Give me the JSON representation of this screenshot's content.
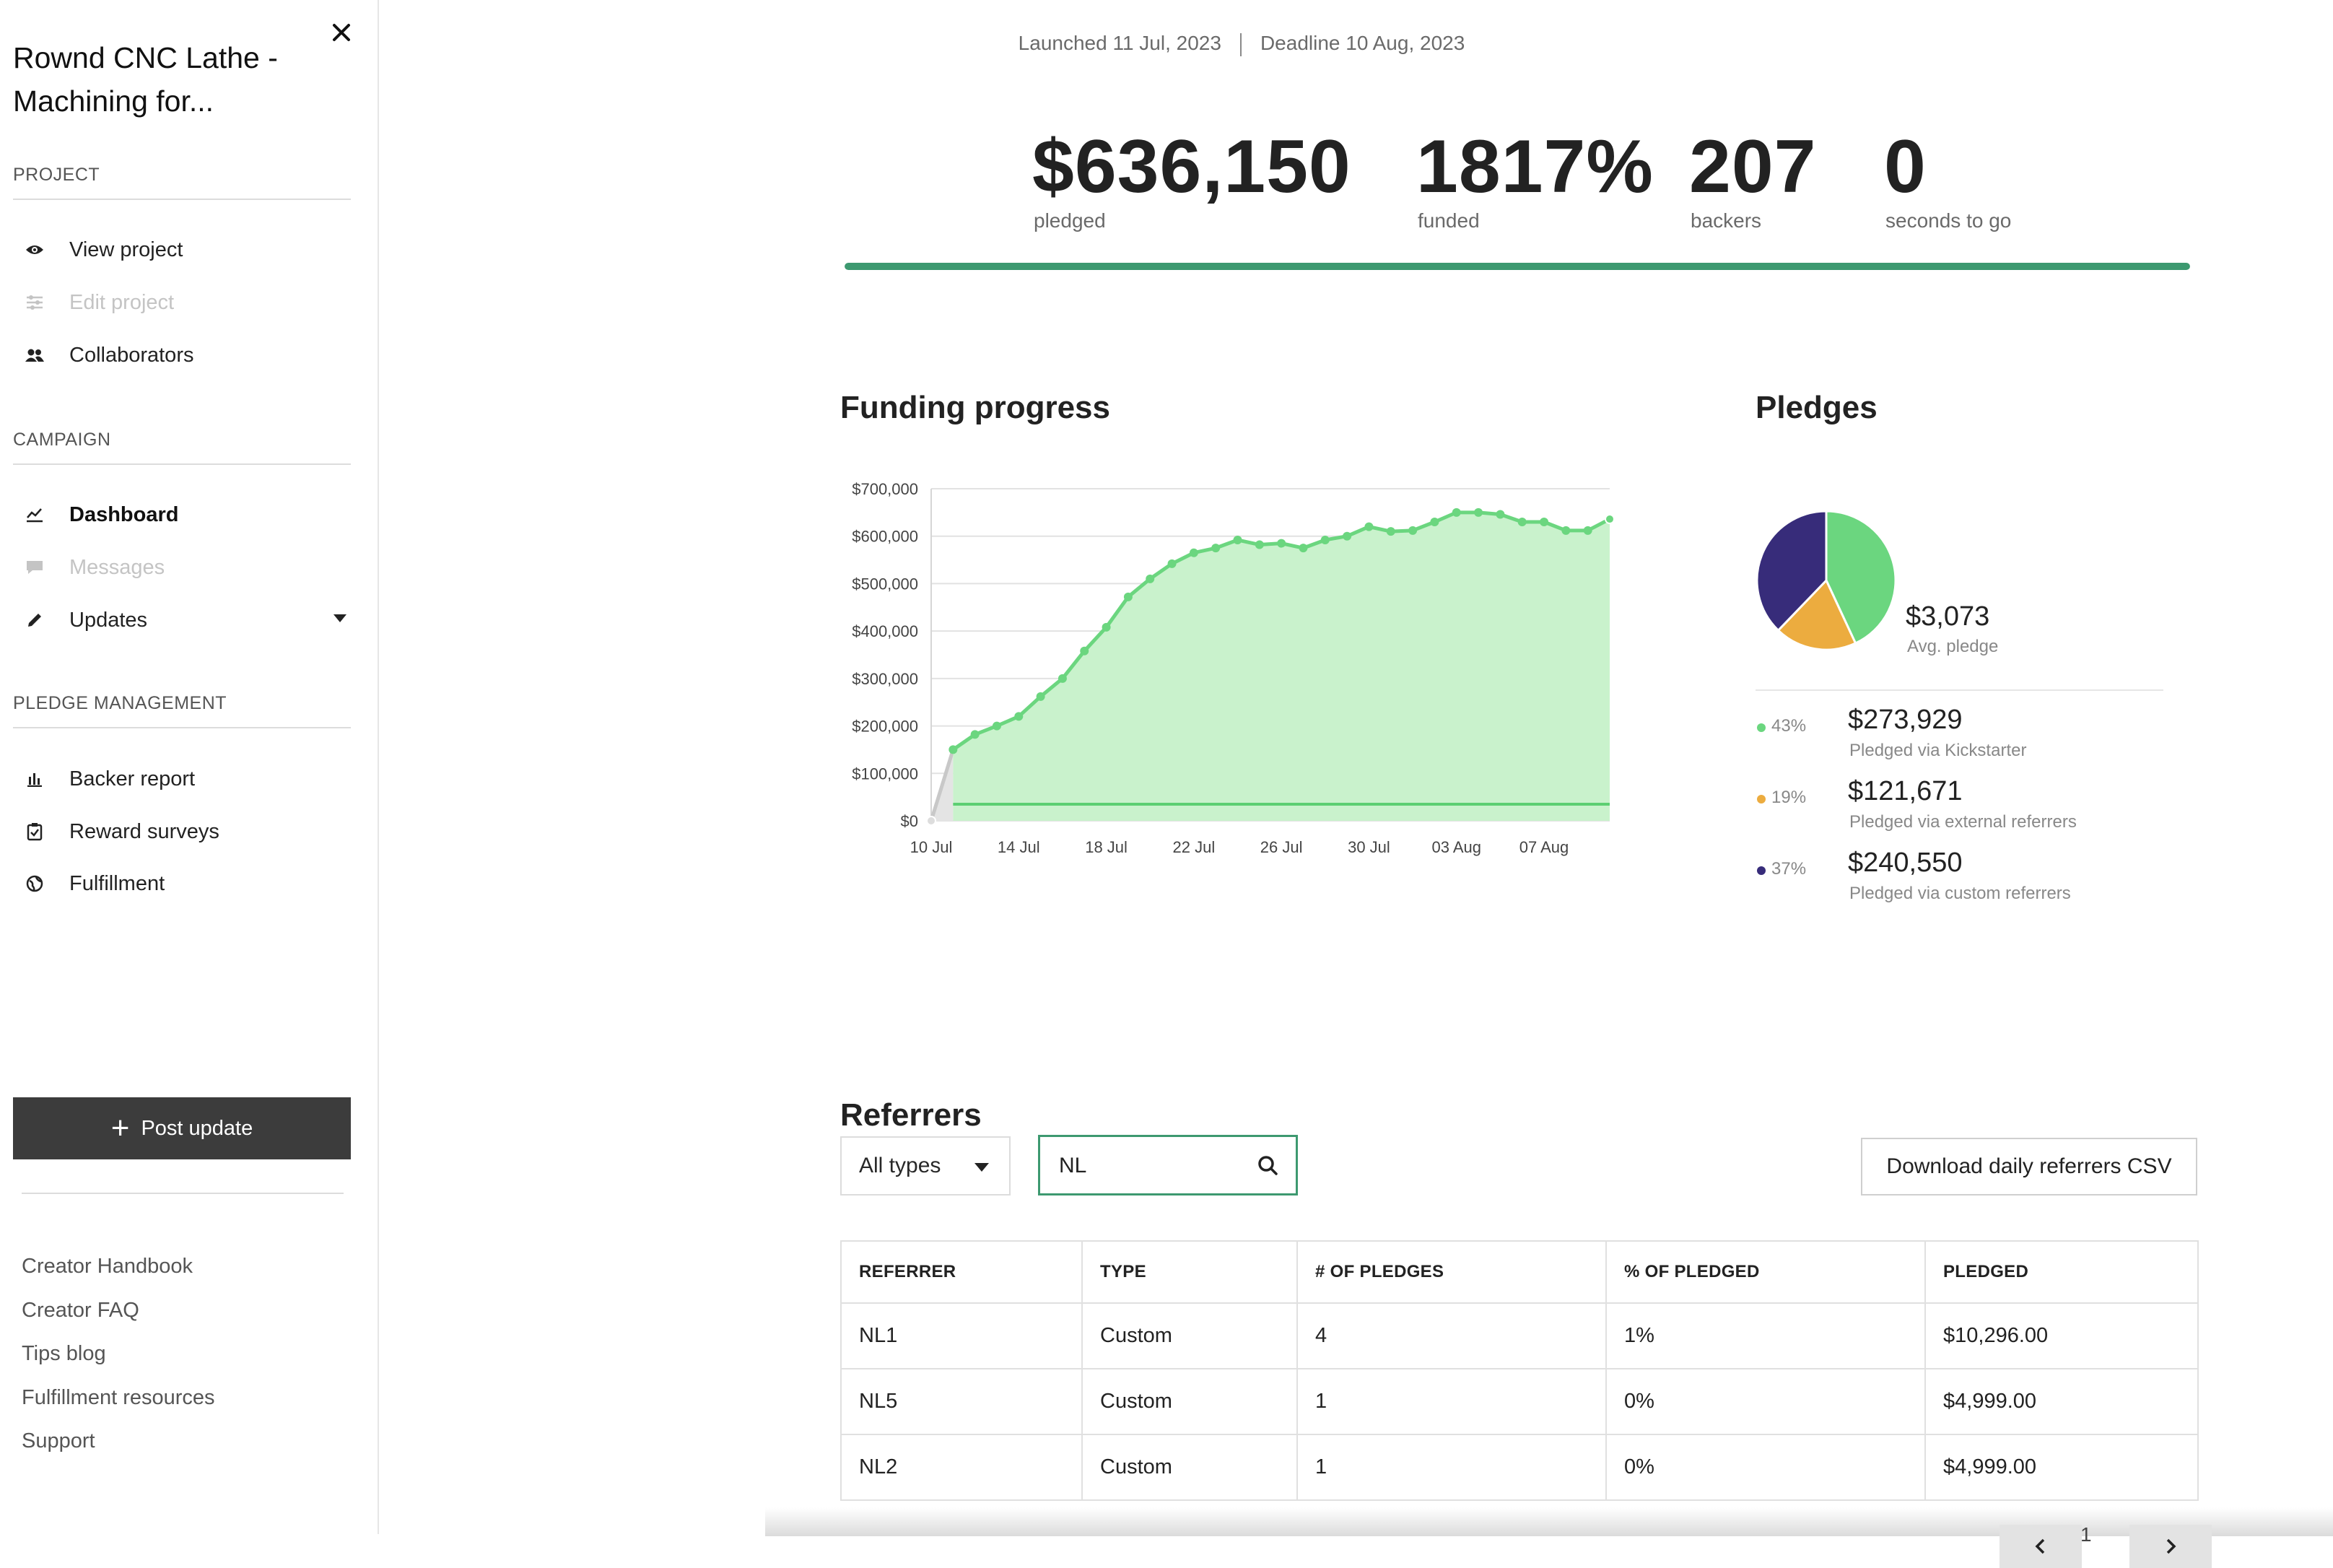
{
  "sidebar": {
    "project_title": "Rownd CNC Lathe - Machining for...",
    "sections": {
      "project": "PROJECT",
      "campaign": "CAMPAIGN",
      "pledge_management": "PLEDGE MANAGEMENT"
    },
    "items": {
      "view_project": "View project",
      "edit_project": "Edit project",
      "collaborators": "Collaborators",
      "dashboard": "Dashboard",
      "messages": "Messages",
      "updates": "Updates",
      "backer_report": "Backer report",
      "reward_surveys": "Reward surveys",
      "fulfillment": "Fulfillment"
    },
    "post_update_label": "Post update",
    "footer_links": {
      "handbook": "Creator Handbook",
      "faq": "Creator FAQ",
      "tips": "Tips blog",
      "fulfillment_resources": "Fulfillment resources",
      "support": "Support"
    }
  },
  "header": {
    "launched": "Launched 11 Jul, 2023",
    "deadline": "Deadline 10 Aug, 2023",
    "stats": {
      "pledged_value": "$636,150",
      "pledged_label": "pledged",
      "funded_value": "1817%",
      "funded_label": "funded",
      "backers_value": "207",
      "backers_label": "backers",
      "time_value": "0",
      "time_label": "seconds to go"
    },
    "goal_progress": 1.0
  },
  "funding_progress": {
    "title": "Funding progress"
  },
  "chart_data": {
    "type": "area",
    "title": "Funding progress",
    "y_tick_labels": [
      "$0",
      "$100,000",
      "$200,000",
      "$300,000",
      "$400,000",
      "$500,000",
      "$600,000",
      "$700,000"
    ],
    "x_tick_labels": [
      "10 Jul",
      "14 Jul",
      "18 Jul",
      "22 Jul",
      "26 Jul",
      "30 Jul",
      "03 Aug",
      "07 Aug"
    ],
    "ylim": [
      0,
      700000
    ],
    "xlim": [
      0,
      31
    ],
    "grid": true,
    "goal_line": 35000,
    "colors": {
      "fill": "#c9f2cc",
      "line": "#6bd67f",
      "goal": "#5ccf72",
      "pre_launch": "#c8c8c8"
    },
    "series": [
      {
        "x": [
          0,
          1,
          2,
          3,
          4,
          5,
          6,
          7,
          8,
          9,
          10,
          11,
          12,
          13,
          14,
          15,
          16,
          17,
          18,
          19,
          20,
          21,
          22,
          23,
          24,
          25,
          26,
          27,
          28,
          29,
          30,
          31
        ],
        "values": [
          0,
          150000,
          182000,
          200000,
          220000,
          262000,
          300000,
          358000,
          408000,
          472000,
          510000,
          542000,
          565000,
          575000,
          592000,
          582000,
          585000,
          575000,
          592000,
          600000,
          620000,
          610000,
          612000,
          630000,
          650000,
          650000,
          646000,
          630000,
          630000,
          612000,
          612000,
          636000
        ]
      }
    ]
  },
  "pledges": {
    "title": "Pledges",
    "avg_value": "$3,073",
    "avg_label": "Avg. pledge",
    "breakdown": [
      {
        "pct": "43%",
        "amount": "$273,929",
        "label": "Pledged via Kickstarter",
        "color": "#6bd67f"
      },
      {
        "pct": "19%",
        "amount": "$121,671",
        "label": "Pledged via external referrers",
        "color": "#ecac3f"
      },
      {
        "pct": "37%",
        "amount": "$240,550",
        "label": "Pledged via custom referrers",
        "color": "#372c7a"
      }
    ]
  },
  "referrers": {
    "title": "Referrers",
    "type_filter": "All types",
    "search_value": "NL",
    "csv_button": "Download daily referrers CSV",
    "columns": [
      "REFERRER",
      "TYPE",
      "# OF PLEDGES",
      "% OF PLEDGED",
      "PLEDGED"
    ],
    "rows": [
      [
        "NL1",
        "Custom",
        "4",
        "1%",
        "$10,296.00"
      ],
      [
        "NL5",
        "Custom",
        "1",
        "0%",
        "$4,999.00"
      ],
      [
        "NL2",
        "Custom",
        "1",
        "0%",
        "$4,999.00"
      ]
    ],
    "page": "1"
  }
}
